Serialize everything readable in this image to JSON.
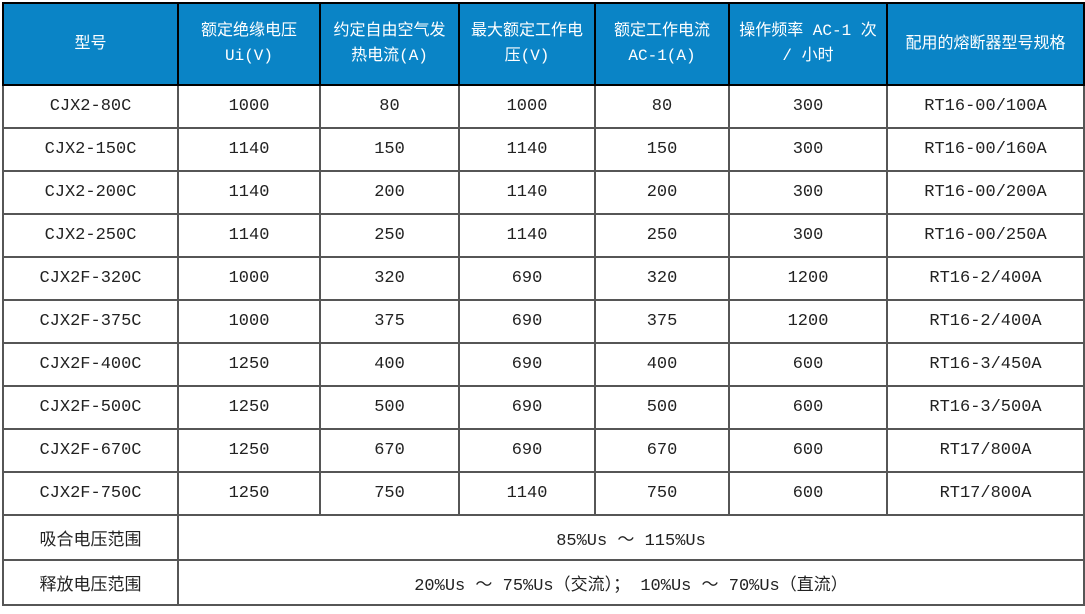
{
  "table": {
    "headers": [
      "型号",
      "额定绝缘电压 Ui(V)",
      "约定自由空气发热电流(A)",
      "最大额定工作电压(V)",
      "额定工作电流 AC-1(A)",
      "操作频率 AC-1 次 / 小时",
      "配用的熔断器型号规格"
    ],
    "rows": [
      [
        "CJX2-80C",
        "1000",
        "80",
        "1000",
        "80",
        "300",
        "RT16-00/100A"
      ],
      [
        "CJX2-150C",
        "1140",
        "150",
        "1140",
        "150",
        "300",
        "RT16-00/160A"
      ],
      [
        "CJX2-200C",
        "1140",
        "200",
        "1140",
        "200",
        "300",
        "RT16-00/200A"
      ],
      [
        "CJX2-250C",
        "1140",
        "250",
        "1140",
        "250",
        "300",
        "RT16-00/250A"
      ],
      [
        "CJX2F-320C",
        "1000",
        "320",
        "690",
        "320",
        "1200",
        "RT16-2/400A"
      ],
      [
        "CJX2F-375C",
        "1000",
        "375",
        "690",
        "375",
        "1200",
        "RT16-2/400A"
      ],
      [
        "CJX2F-400C",
        "1250",
        "400",
        "690",
        "400",
        "600",
        "RT16-3/450A"
      ],
      [
        "CJX2F-500C",
        "1250",
        "500",
        "690",
        "500",
        "600",
        "RT16-3/500A"
      ],
      [
        "CJX2F-670C",
        "1250",
        "670",
        "690",
        "670",
        "600",
        "RT17/800A"
      ],
      [
        "CJX2F-750C",
        "1250",
        "750",
        "1140",
        "750",
        "600",
        "RT17/800A"
      ]
    ],
    "footer_rows": [
      {
        "label": "吸合电压范围",
        "value": "85%Us ～ 115%Us"
      },
      {
        "label": "释放电压范围",
        "value": "20%Us ～ 75%Us（交流）； 10%Us ～ 70%Us（直流）"
      }
    ],
    "colors": {
      "header_bg": "#0a84c6",
      "header_text": "#ffffff",
      "body_text": "#222222",
      "grid_border": "#565656",
      "outer_border": "#333333"
    }
  }
}
